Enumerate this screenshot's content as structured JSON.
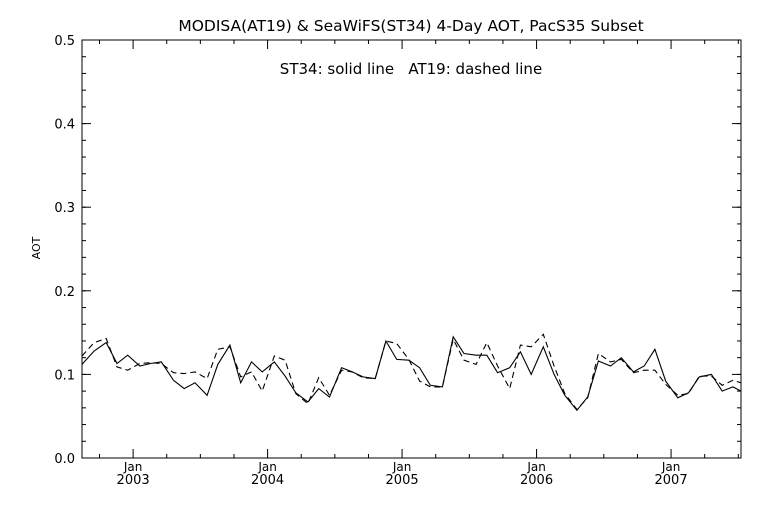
{
  "chart_data": {
    "type": "line",
    "title": "MODISA(AT19) & SeaWiFS(ST34) 4-Day AOT, PacS35 Subset",
    "legend_text": "ST34: solid line   AT19: dashed line",
    "ylabel": "AOT",
    "xlabel": "",
    "ylim": [
      0.0,
      0.5
    ],
    "yticks": [
      "0.0",
      "0.1",
      "0.2",
      "0.3",
      "0.4",
      "0.5"
    ],
    "xlim": [
      2002.62,
      2007.52
    ],
    "xticks": [
      {
        "year": 2003,
        "month_label": "Jan",
        "year_label": "2003"
      },
      {
        "year": 2004,
        "month_label": "Jan",
        "year_label": "2004"
      },
      {
        "year": 2005,
        "month_label": "Jan",
        "year_label": "2005"
      },
      {
        "year": 2006,
        "month_label": "Jan",
        "year_label": "2006"
      },
      {
        "year": 2007,
        "month_label": "Jan",
        "year_label": "2007"
      }
    ],
    "grid": false,
    "series": [
      {
        "name": "ST34",
        "style": "solid",
        "x": [
          2002.62,
          2002.71,
          2002.8,
          2002.88,
          2002.96,
          2003.05,
          2003.13,
          2003.21,
          2003.3,
          2003.38,
          2003.46,
          2003.55,
          2003.63,
          2003.72,
          2003.8,
          2003.88,
          2003.96,
          2004.05,
          2004.13,
          2004.21,
          2004.3,
          2004.38,
          2004.46,
          2004.55,
          2004.63,
          2004.71,
          2004.8,
          2004.88,
          2004.96,
          2005.05,
          2005.13,
          2005.21,
          2005.3,
          2005.38,
          2005.46,
          2005.55,
          2005.63,
          2005.71,
          2005.8,
          2005.88,
          2005.96,
          2006.05,
          2006.13,
          2006.21,
          2006.3,
          2006.38,
          2006.46,
          2006.55,
          2006.63,
          2006.72,
          2006.8,
          2006.88,
          2006.96,
          2007.05,
          2007.13,
          2007.21,
          2007.3,
          2007.38,
          2007.46,
          2007.52
        ],
        "values": [
          0.112,
          0.128,
          0.138,
          0.113,
          0.123,
          0.11,
          0.113,
          0.115,
          0.093,
          0.083,
          0.09,
          0.075,
          0.112,
          0.135,
          0.09,
          0.115,
          0.103,
          0.115,
          0.098,
          0.078,
          0.067,
          0.083,
          0.073,
          0.108,
          0.103,
          0.097,
          0.095,
          0.14,
          0.118,
          0.117,
          0.108,
          0.087,
          0.085,
          0.145,
          0.125,
          0.123,
          0.123,
          0.102,
          0.108,
          0.127,
          0.1,
          0.133,
          0.1,
          0.075,
          0.057,
          0.073,
          0.116,
          0.11,
          0.12,
          0.103,
          0.11,
          0.13,
          0.092,
          0.072,
          0.078,
          0.097,
          0.1,
          0.08,
          0.085,
          0.08
        ]
      },
      {
        "name": "AT19",
        "style": "dashed",
        "x": [
          2002.62,
          2002.71,
          2002.8,
          2002.88,
          2002.96,
          2003.05,
          2003.13,
          2003.21,
          2003.3,
          2003.38,
          2003.46,
          2003.55,
          2003.63,
          2003.72,
          2003.8,
          2003.88,
          2003.96,
          2004.05,
          2004.13,
          2004.21,
          2004.3,
          2004.38,
          2004.46,
          2004.55,
          2004.63,
          2004.71,
          2004.8,
          2004.88,
          2004.96,
          2005.05,
          2005.13,
          2005.21,
          2005.3,
          2005.38,
          2005.46,
          2005.55,
          2005.63,
          2005.71,
          2005.8,
          2005.88,
          2005.96,
          2006.05,
          2006.13,
          2006.21,
          2006.3,
          2006.38,
          2006.46,
          2006.55,
          2006.63,
          2006.72,
          2006.8,
          2006.88,
          2006.96,
          2007.05,
          2007.13,
          2007.21,
          2007.3,
          2007.38,
          2007.46,
          2007.52
        ],
        "values": [
          0.122,
          0.138,
          0.143,
          0.109,
          0.105,
          0.113,
          0.114,
          0.113,
          0.102,
          0.101,
          0.103,
          0.095,
          0.13,
          0.133,
          0.097,
          0.103,
          0.08,
          0.122,
          0.117,
          0.077,
          0.065,
          0.096,
          0.075,
          0.105,
          0.103,
          0.096,
          0.095,
          0.14,
          0.137,
          0.118,
          0.092,
          0.085,
          0.085,
          0.142,
          0.117,
          0.112,
          0.138,
          0.11,
          0.083,
          0.135,
          0.133,
          0.148,
          0.11,
          0.077,
          0.058,
          0.072,
          0.125,
          0.115,
          0.118,
          0.102,
          0.105,
          0.105,
          0.088,
          0.075,
          0.077,
          0.098,
          0.098,
          0.087,
          0.093,
          0.09
        ]
      }
    ]
  }
}
